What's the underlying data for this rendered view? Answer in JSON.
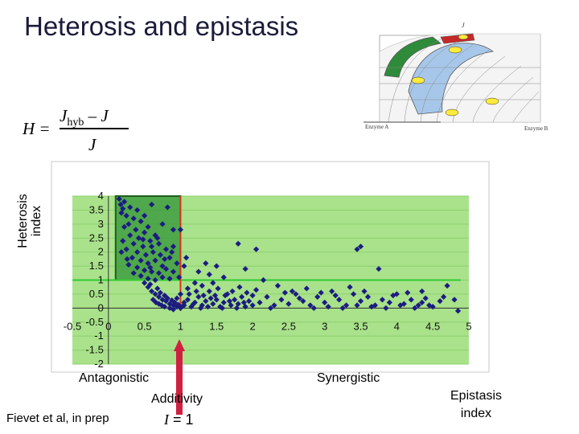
{
  "slide": {
    "title": "Heterosis and epistasis",
    "formula": {
      "lhs": "H =",
      "numerator_main": "J",
      "numerator_sub": "hyb",
      "numerator_rest": " – J",
      "denominator": "J"
    },
    "y_label_line1": "Heterosis",
    "y_label_line2": "index",
    "x_label_line1": "Epistasis",
    "x_label_line2": "index",
    "antagonistic": "Antagonistic",
    "additivity": "Additivity",
    "synergistic": "Synergistic",
    "citation": "Fievet et al, in prep",
    "i_equals": "= 1",
    "i_symbol": "I",
    "inset": {
      "axis_label_a": "Enzyme A",
      "axis_label_b": "Enzyme B",
      "axis_label_j": "J"
    }
  },
  "colors": {
    "band": "#a9e28b",
    "zone": "#3f9e3f",
    "points": "#1c1c80",
    "additivity_line": "#e03020",
    "threshold_line": "#33cc33",
    "arrow": "#d02040"
  },
  "chart_data": {
    "type": "scatter",
    "title": "",
    "xlabel": "Epistasis index",
    "ylabel": "Heterosis index",
    "xlim": [
      -0.5,
      5
    ],
    "ylim": [
      -2,
      4
    ],
    "x_ticks": [
      "-0.5",
      "0",
      "0.5",
      "1",
      "1.5",
      "2",
      "2.5",
      "3",
      "3.5",
      "4",
      "4.5",
      "5"
    ],
    "y_ticks": [
      "4",
      "3.5",
      "3",
      "2.5",
      "2",
      "1.5",
      "1",
      "0.5",
      "0",
      "-0.5",
      "-1",
      "-1.5",
      "-2"
    ],
    "vertical_line_x": 1,
    "horizontal_line_y": 1,
    "highlight_box": {
      "x": [
        0.1,
        1
      ],
      "y": [
        1,
        4
      ]
    },
    "points": [
      [
        0.15,
        3.9
      ],
      [
        0.17,
        3.7
      ],
      [
        0.2,
        3.55
      ],
      [
        0.22,
        3.8
      ],
      [
        0.25,
        3.3
      ],
      [
        0.18,
        3.4
      ],
      [
        0.3,
        3.6
      ],
      [
        0.35,
        3.2
      ],
      [
        0.28,
        3.0
      ],
      [
        0.4,
        3.5
      ],
      [
        0.45,
        3.1
      ],
      [
        0.22,
        2.9
      ],
      [
        0.38,
        2.8
      ],
      [
        0.5,
        3.3
      ],
      [
        0.55,
        2.9
      ],
      [
        0.6,
        3.7
      ],
      [
        0.3,
        2.6
      ],
      [
        0.42,
        2.5
      ],
      [
        0.5,
        2.7
      ],
      [
        0.65,
        2.6
      ],
      [
        0.2,
        2.4
      ],
      [
        0.35,
        2.3
      ],
      [
        0.48,
        2.2
      ],
      [
        0.58,
        2.4
      ],
      [
        0.7,
        2.3
      ],
      [
        0.75,
        3.0
      ],
      [
        0.82,
        3.6
      ],
      [
        0.9,
        2.8
      ],
      [
        0.25,
        2.1
      ],
      [
        0.4,
        2.0
      ],
      [
        0.52,
        1.9
      ],
      [
        0.62,
        2.0
      ],
      [
        0.72,
        1.9
      ],
      [
        0.8,
        2.1
      ],
      [
        0.9,
        2.2
      ],
      [
        0.33,
        1.8
      ],
      [
        0.45,
        1.7
      ],
      [
        0.55,
        1.6
      ],
      [
        0.65,
        1.7
      ],
      [
        0.75,
        1.5
      ],
      [
        0.85,
        1.8
      ],
      [
        0.95,
        1.6
      ],
      [
        0.28,
        1.55
      ],
      [
        0.4,
        1.45
      ],
      [
        0.5,
        1.35
      ],
      [
        0.6,
        1.3
      ],
      [
        0.7,
        1.25
      ],
      [
        0.8,
        1.4
      ],
      [
        0.9,
        1.3
      ],
      [
        0.98,
        1.1
      ],
      [
        0.35,
        1.25
      ],
      [
        0.45,
        1.15
      ],
      [
        0.55,
        1.05
      ],
      [
        0.65,
        1.0
      ],
      [
        0.75,
        1.1
      ],
      [
        0.85,
        1.05
      ],
      [
        0.18,
        2.0
      ],
      [
        0.26,
        1.75
      ],
      [
        0.6,
        2.2
      ],
      [
        0.68,
        2.5
      ],
      [
        0.78,
        1.75
      ],
      [
        0.88,
        2.0
      ],
      [
        0.48,
        2.45
      ],
      [
        0.58,
        1.45
      ],
      [
        0.5,
        0.9
      ],
      [
        0.55,
        0.75
      ],
      [
        0.6,
        0.6
      ],
      [
        0.65,
        0.5
      ],
      [
        0.7,
        0.4
      ],
      [
        0.75,
        0.3
      ],
      [
        0.8,
        0.25
      ],
      [
        0.85,
        0.15
      ],
      [
        0.9,
        0.1
      ],
      [
        0.95,
        0.05
      ],
      [
        1.0,
        0.0
      ],
      [
        0.58,
        0.85
      ],
      [
        0.68,
        0.7
      ],
      [
        0.72,
        0.55
      ],
      [
        0.78,
        0.45
      ],
      [
        0.82,
        0.35
      ],
      [
        0.88,
        0.28
      ],
      [
        0.92,
        0.2
      ],
      [
        0.97,
        0.12
      ],
      [
        1.02,
        0.05
      ],
      [
        0.62,
        0.3
      ],
      [
        0.7,
        0.15
      ],
      [
        0.78,
        0.05
      ],
      [
        0.85,
        0.0
      ],
      [
        0.9,
        -0.05
      ],
      [
        0.66,
        0.2
      ],
      [
        0.74,
        0.1
      ],
      [
        0.95,
        0.35
      ],
      [
        1.05,
        0.2
      ],
      [
        1.0,
        0.5
      ],
      [
        1.05,
        0.1
      ],
      [
        1.1,
        0.3
      ],
      [
        1.15,
        0.05
      ],
      [
        1.2,
        0.2
      ],
      [
        1.25,
        0.4
      ],
      [
        1.3,
        0.1
      ],
      [
        1.35,
        0.25
      ],
      [
        1.4,
        0.6
      ],
      [
        1.45,
        0.15
      ],
      [
        1.5,
        0.3
      ],
      [
        1.55,
        0.05
      ],
      [
        1.6,
        0.2
      ],
      [
        1.65,
        0.5
      ],
      [
        1.7,
        0.1
      ],
      [
        1.75,
        0.3
      ],
      [
        1.8,
        0.15
      ],
      [
        1.85,
        0.4
      ],
      [
        1.9,
        0.05
      ],
      [
        1.95,
        0.25
      ],
      [
        2.0,
        0.1
      ],
      [
        1.1,
        0.7
      ],
      [
        1.2,
        0.9
      ],
      [
        1.3,
        0.8
      ],
      [
        1.4,
        1.2
      ],
      [
        1.5,
        1.5
      ],
      [
        1.6,
        1.1
      ],
      [
        1.25,
        1.3
      ],
      [
        1.45,
        0.9
      ],
      [
        1.35,
        1.6
      ],
      [
        1.08,
        1.8
      ],
      [
        1.12,
        0.5
      ],
      [
        1.22,
        0.6
      ],
      [
        1.32,
        0.45
      ],
      [
        1.42,
        0.35
      ],
      [
        1.52,
        0.7
      ],
      [
        1.62,
        0.45
      ],
      [
        1.72,
        0.6
      ],
      [
        1.82,
        0.75
      ],
      [
        1.92,
        0.55
      ],
      [
        1.18,
        0.15
      ],
      [
        1.28,
        0.0
      ],
      [
        1.38,
        0.05
      ],
      [
        1.48,
        0.45
      ],
      [
        1.58,
        0.0
      ],
      [
        1.68,
        0.25
      ],
      [
        1.78,
        0.0
      ],
      [
        1.88,
        0.2
      ],
      [
        2.1,
        0.2
      ],
      [
        2.2,
        0.4
      ],
      [
        2.3,
        0.1
      ],
      [
        2.4,
        0.3
      ],
      [
        2.5,
        0.15
      ],
      [
        2.6,
        0.5
      ],
      [
        2.7,
        0.25
      ],
      [
        2.8,
        0.1
      ],
      [
        2.9,
        0.4
      ],
      [
        3.0,
        0.2
      ],
      [
        3.1,
        0.6
      ],
      [
        3.2,
        0.3
      ],
      [
        3.3,
        0.1
      ],
      [
        3.4,
        0.5
      ],
      [
        3.5,
        0.25
      ],
      [
        3.6,
        0.4
      ],
      [
        3.7,
        0.1
      ],
      [
        3.8,
        0.3
      ],
      [
        3.9,
        0.2
      ],
      [
        4.0,
        0.5
      ],
      [
        4.1,
        0.15
      ],
      [
        4.2,
        0.3
      ],
      [
        4.3,
        0.1
      ],
      [
        4.4,
        0.35
      ],
      [
        2.15,
        1.0
      ],
      [
        2.35,
        0.8
      ],
      [
        2.55,
        0.6
      ],
      [
        2.75,
        0.7
      ],
      [
        2.95,
        0.55
      ],
      [
        3.15,
        0.45
      ],
      [
        3.35,
        0.75
      ],
      [
        3.55,
        0.6
      ],
      [
        3.75,
        1.4
      ],
      [
        3.95,
        0.45
      ],
      [
        4.15,
        0.55
      ],
      [
        4.35,
        0.6
      ],
      [
        2.05,
        0.65
      ],
      [
        2.45,
        0.55
      ],
      [
        2.65,
        0.35
      ],
      [
        2.85,
        0.0
      ],
      [
        3.05,
        0.05
      ],
      [
        3.25,
        0.0
      ],
      [
        3.45,
        0.1
      ],
      [
        3.65,
        0.05
      ],
      [
        3.85,
        0.0
      ],
      [
        4.05,
        0.1
      ],
      [
        4.25,
        0.0
      ],
      [
        4.45,
        0.1
      ],
      [
        2.25,
        0.0
      ],
      [
        2.0,
        0.45
      ],
      [
        1.0,
        2.8
      ],
      [
        1.9,
        1.4
      ],
      [
        1.8,
        2.3
      ],
      [
        1.05,
        1.5
      ],
      [
        3.5,
        2.2
      ],
      [
        4.6,
        0.25
      ],
      [
        4.5,
        0.05
      ],
      [
        4.65,
        0.4
      ],
      [
        4.8,
        0.3
      ],
      [
        4.85,
        -0.1
      ],
      [
        4.35,
        0.2
      ],
      [
        4.7,
        0.8
      ],
      [
        3.45,
        2.1
      ],
      [
        2.05,
        2.1
      ]
    ]
  }
}
